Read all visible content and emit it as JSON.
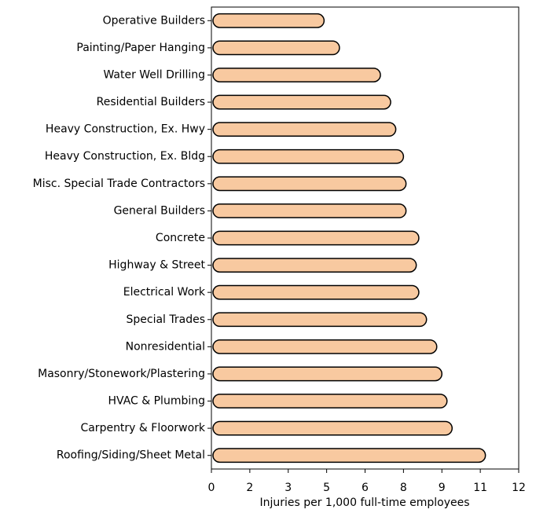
{
  "chart_data": {
    "type": "bar",
    "orientation": "horizontal",
    "x_label": "Injuries per 1,000 full-time employees",
    "categories": [
      "Operative Builders",
      "Painting/Paper Hanging",
      "Water Well Drilling",
      "Residential Builders",
      "Heavy Construction, Ex. Hwy",
      "Heavy Construction, Ex. Bldg",
      "Misc. Special Trade Contractors",
      "General Builders",
      "Concrete",
      "Highway & Street",
      "Electrical Work",
      "Special Trades",
      "Nonresidential",
      "Masonry/Stonework/Plastering",
      "HVAC & Plumbing",
      "Carpentry & Floorwork",
      "Roofing/Siding/Sheet Metal"
    ],
    "values": [
      4.4,
      5.0,
      6.6,
      7.0,
      7.2,
      7.5,
      7.6,
      7.6,
      8.1,
      8.0,
      8.1,
      8.4,
      8.8,
      9.0,
      9.2,
      9.4,
      10.7
    ],
    "color": "#f8c9a0",
    "xlim": [
      0,
      12
    ],
    "xticks": [
      0,
      {
        "value": 1.5,
        "label": "2"
      },
      3,
      {
        "value": 4.5,
        "label": "5"
      },
      6,
      {
        "value": 7.5,
        "label": "8"
      },
      9,
      {
        "value": 10.5,
        "label": "11"
      },
      12
    ]
  }
}
